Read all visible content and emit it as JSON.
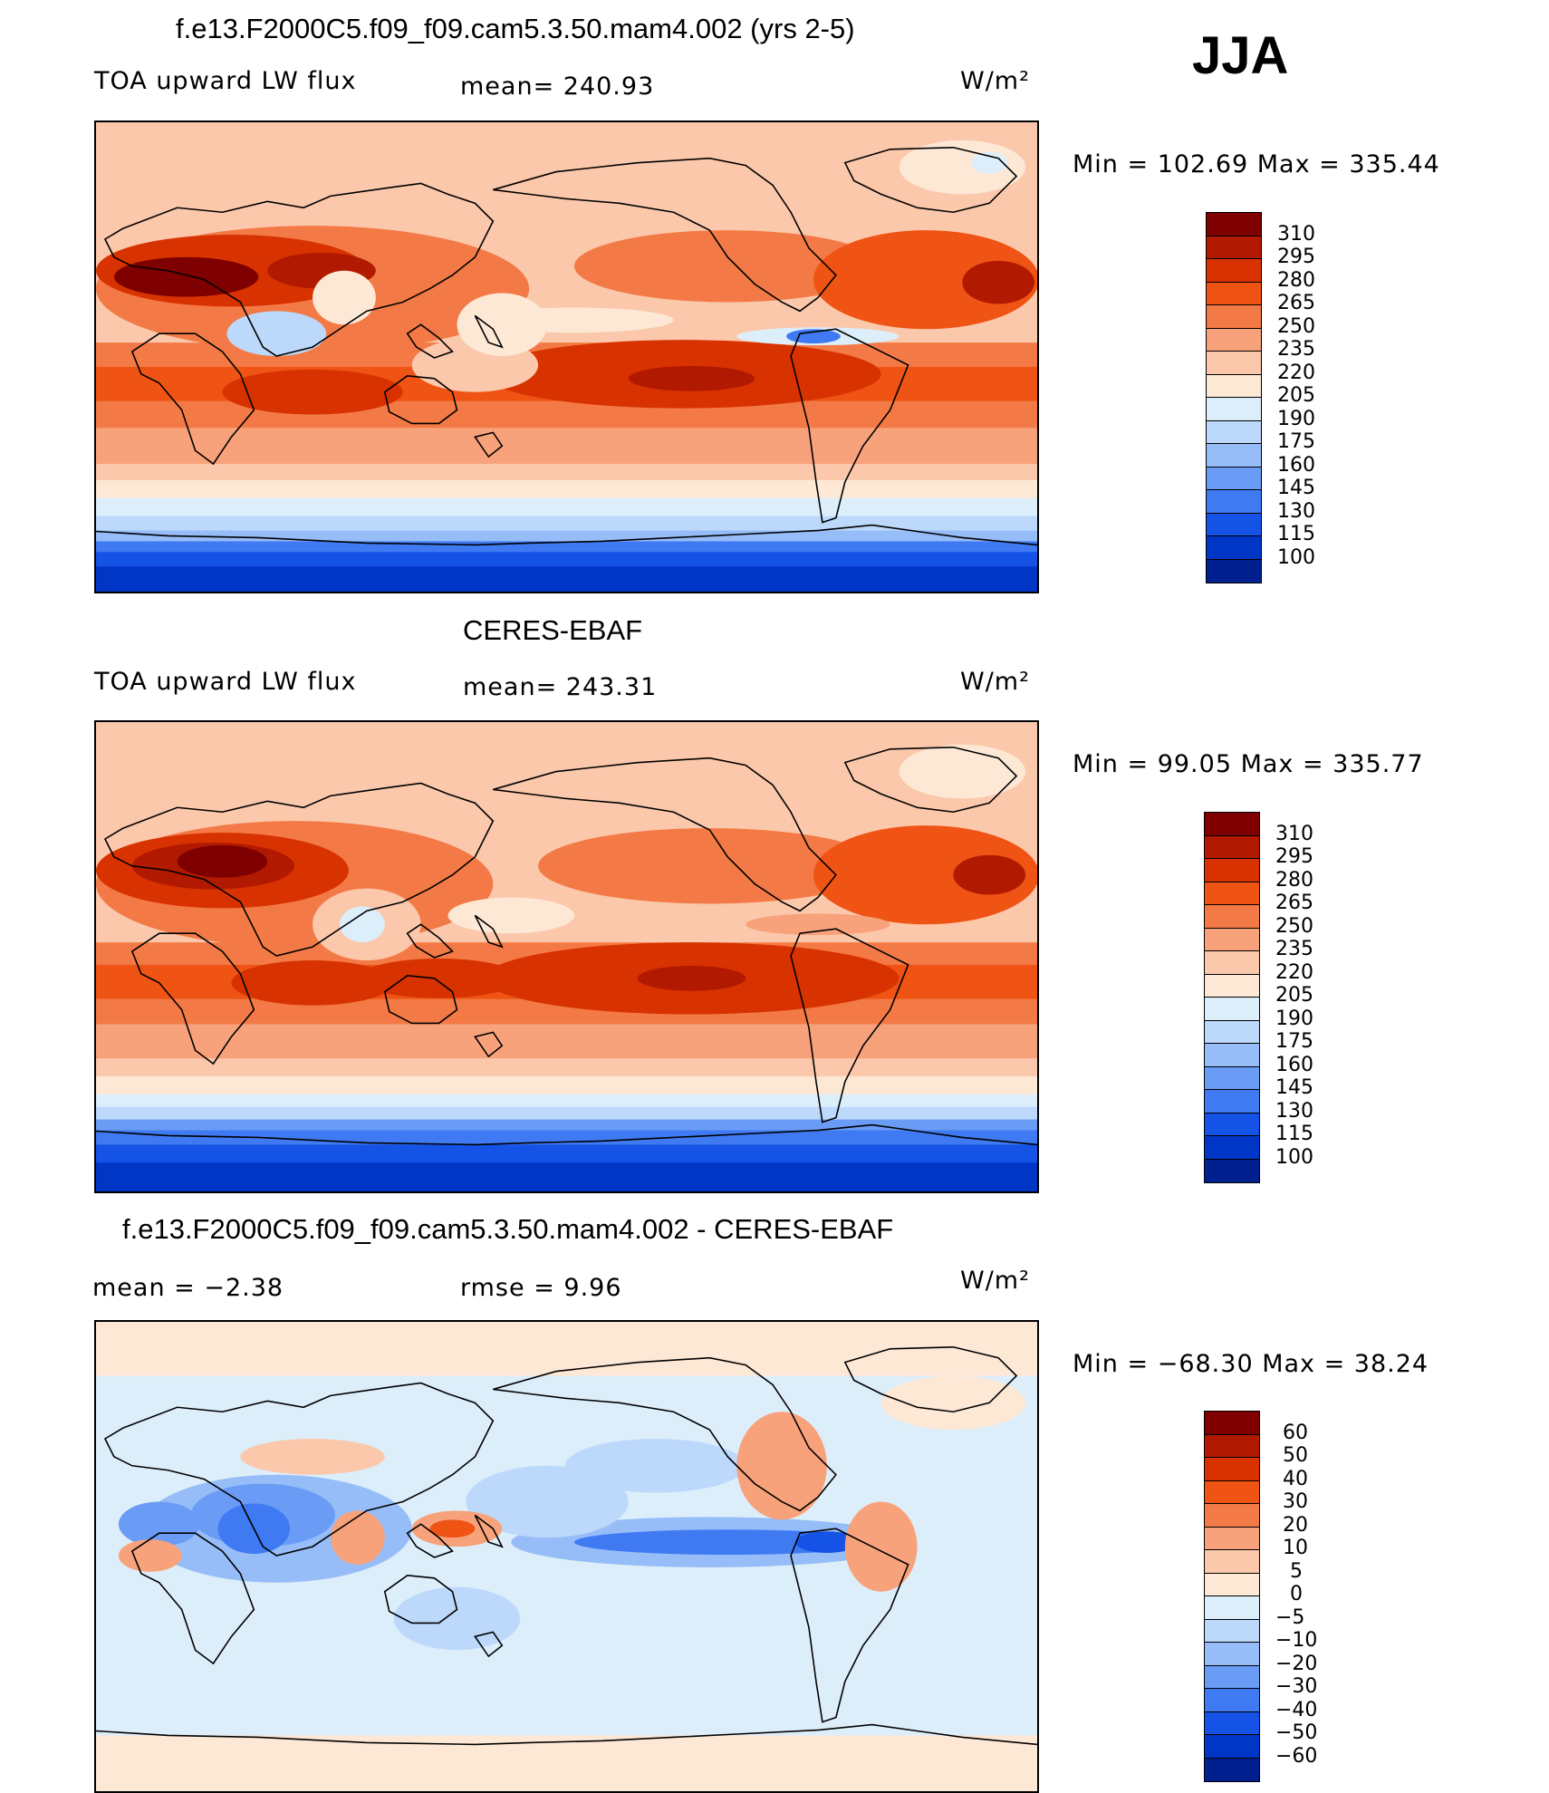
{
  "season": "JJA",
  "panels": [
    {
      "id": "model",
      "title": "f.e13.F2000C5.f09_f09.cam5.3.50.mam4.002 (yrs 2-5)",
      "left_label": "TOA upward LW flux",
      "center_label": "mean= 240.93",
      "units": "W/m²",
      "stats": "Min = 102.69 Max = 335.44",
      "colorbar": {
        "labels": [
          "310",
          "295",
          "280",
          "265",
          "250",
          "235",
          "220",
          "205",
          "190",
          "175",
          "160",
          "145",
          "130",
          "115",
          "100"
        ],
        "colors": [
          "#7f0000",
          "#b11a00",
          "#d83200",
          "#ef5414",
          "#f37a46",
          "#f8a27c",
          "#fbc8ab",
          "#fde8d6",
          "#ddeefb",
          "#bcd8fb",
          "#96bdf8",
          "#6a9cf5",
          "#3f7af2",
          "#1552e6",
          "#0036c6",
          "#00208f"
        ]
      }
    },
    {
      "id": "obs",
      "title": "CERES-EBAF",
      "left_label": "TOA upward LW flux",
      "center_label": "mean= 243.31",
      "units": "W/m²",
      "stats": "Min =  99.05 Max = 335.77",
      "colorbar": {
        "labels": [
          "310",
          "295",
          "280",
          "265",
          "250",
          "235",
          "220",
          "205",
          "190",
          "175",
          "160",
          "145",
          "130",
          "115",
          "100"
        ],
        "colors": [
          "#7f0000",
          "#b11a00",
          "#d83200",
          "#ef5414",
          "#f37a46",
          "#f8a27c",
          "#fbc8ab",
          "#fde8d6",
          "#ddeefb",
          "#bcd8fb",
          "#96bdf8",
          "#6a9cf5",
          "#3f7af2",
          "#1552e6",
          "#0036c6",
          "#00208f"
        ]
      }
    },
    {
      "id": "diff",
      "title": "f.e13.F2000C5.f09_f09.cam5.3.50.mam4.002 - CERES-EBAF",
      "left_label": "mean =   −2.38",
      "center_label": "rmse =    9.96",
      "units": "W/m²",
      "stats": "Min = −68.30 Max =  38.24",
      "colorbar": {
        "labels": [
          "60",
          "50",
          "40",
          "30",
          "20",
          "10",
          "5",
          "0",
          "−5",
          "−10",
          "−20",
          "−30",
          "−40",
          "−50",
          "−60"
        ],
        "colors": [
          "#7f0000",
          "#b11a00",
          "#d83200",
          "#ef5414",
          "#f37a46",
          "#f8a27c",
          "#fbc8ab",
          "#fde8d6",
          "#ddeefb",
          "#bcd8fb",
          "#96bdf8",
          "#6a9cf5",
          "#3f7af2",
          "#1552e6",
          "#0036c6",
          "#00208f"
        ]
      }
    }
  ]
}
